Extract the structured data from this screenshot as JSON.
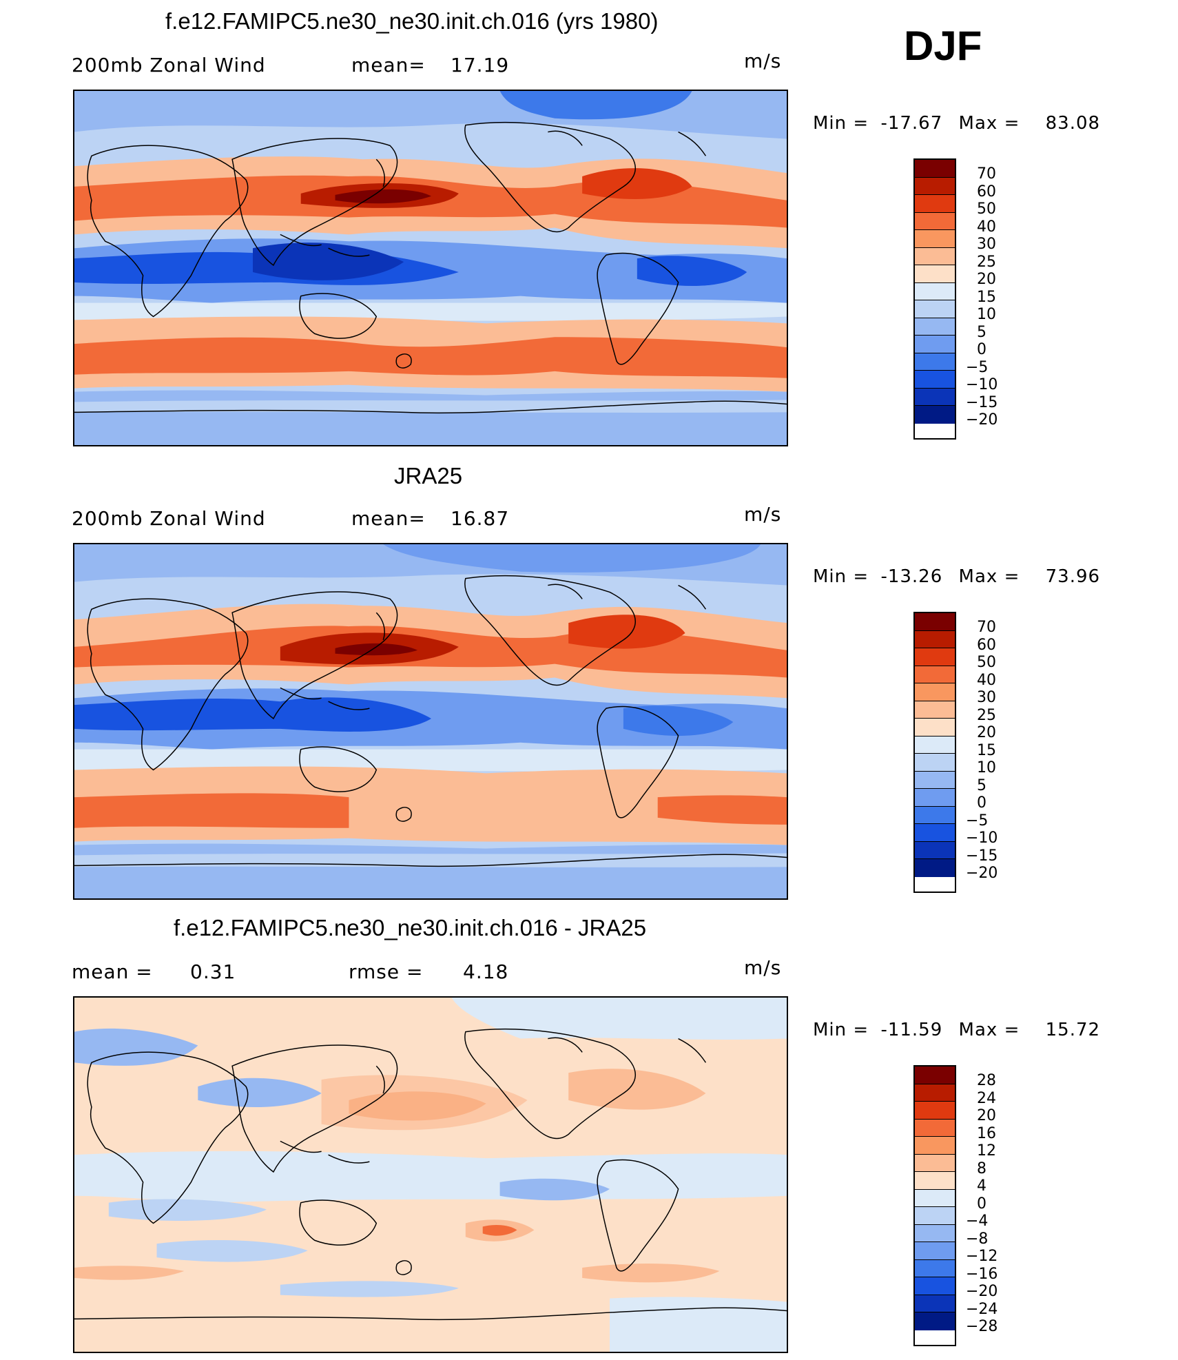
{
  "season": "DJF",
  "panels": [
    {
      "title": "f.e12.FAMIPC5.ne30_ne30.init.ch.016 (yrs 1980)",
      "left_label": "200mb Zonal Wind",
      "stat1_label": "mean=",
      "stat1_value": "17.19",
      "stat2_label": "",
      "stat2_value": "",
      "units": "m/s",
      "min_label": "Min =",
      "min_value": "-17.67",
      "max_label": "Max =",
      "max_value": "83.08",
      "colorbar": {
        "labels": [
          "70",
          "60",
          "50",
          "40",
          "30",
          "25",
          "20",
          "15",
          "10",
          "5",
          "0",
          "-5",
          "-10",
          "-15",
          "-20"
        ],
        "colors": [
          "#7a0000",
          "#b81c00",
          "#e03a10",
          "#f26a38",
          "#f9975f",
          "#fbbc95",
          "#fde0c8",
          "#dceaf8",
          "#bcd3f4",
          "#96b8f2",
          "#6f9cf0",
          "#3d79ea",
          "#1853e0",
          "#0b34b8",
          "#001a85"
        ]
      },
      "regions": [
        {
          "name": "nh-jet",
          "color": "#e03a10"
        },
        {
          "name": "nh-jet-core",
          "color": "#7a0000"
        },
        {
          "name": "tropical-easterlies",
          "color": "#1853e0"
        },
        {
          "name": "sh-jet",
          "color": "#f26a38"
        },
        {
          "name": "antarctic",
          "color": "#96b8f2"
        }
      ]
    },
    {
      "title": "JRA25",
      "left_label": "200mb Zonal Wind",
      "stat1_label": "mean=",
      "stat1_value": "16.87",
      "stat2_label": "",
      "stat2_value": "",
      "units": "m/s",
      "min_label": "Min =",
      "min_value": "-13.26",
      "max_label": "Max =",
      "max_value": "73.96",
      "colorbar": {
        "labels": [
          "70",
          "60",
          "50",
          "40",
          "30",
          "25",
          "20",
          "15",
          "10",
          "5",
          "0",
          "-5",
          "-10",
          "-15",
          "-20"
        ],
        "colors": [
          "#7a0000",
          "#b81c00",
          "#e03a10",
          "#f26a38",
          "#f9975f",
          "#fbbc95",
          "#fde0c8",
          "#dceaf8",
          "#bcd3f4",
          "#96b8f2",
          "#6f9cf0",
          "#3d79ea",
          "#1853e0",
          "#0b34b8",
          "#001a85"
        ]
      },
      "regions": [
        {
          "name": "nh-jet",
          "color": "#e03a10"
        },
        {
          "name": "nh-jet-core",
          "color": "#7a0000"
        },
        {
          "name": "tropical-easterlies",
          "color": "#1853e0"
        },
        {
          "name": "sh-jet",
          "color": "#f26a38"
        },
        {
          "name": "antarctic",
          "color": "#96b8f2"
        }
      ]
    },
    {
      "title": "f.e12.FAMIPC5.ne30_ne30.init.ch.016 - JRA25",
      "left_label": "mean =",
      "stat1_label": "",
      "stat1_value": "0.31",
      "stat2_label": "rmse =",
      "stat2_value": "4.18",
      "units": "m/s",
      "min_label": "Min =",
      "min_value": "-11.59",
      "max_label": "Max =",
      "max_value": "15.72",
      "colorbar": {
        "labels": [
          "28",
          "24",
          "20",
          "16",
          "12",
          "8",
          "4",
          "0",
          "-4",
          "-8",
          "-12",
          "-16",
          "-20",
          "-24",
          "-28"
        ],
        "colors": [
          "#7a0000",
          "#b81c00",
          "#e03a10",
          "#f26a38",
          "#f9975f",
          "#fbbc95",
          "#fde0c8",
          "#dceaf8",
          "#bcd3f4",
          "#96b8f2",
          "#6f9cf0",
          "#3d79ea",
          "#1853e0",
          "#0b34b8",
          "#001a85"
        ]
      },
      "regions": [
        {
          "name": "diff-positive",
          "color": "#fbbc95"
        },
        {
          "name": "diff-negative",
          "color": "#96b8f2"
        },
        {
          "name": "diff-neutral",
          "color": "#fde0c8"
        }
      ]
    }
  ]
}
